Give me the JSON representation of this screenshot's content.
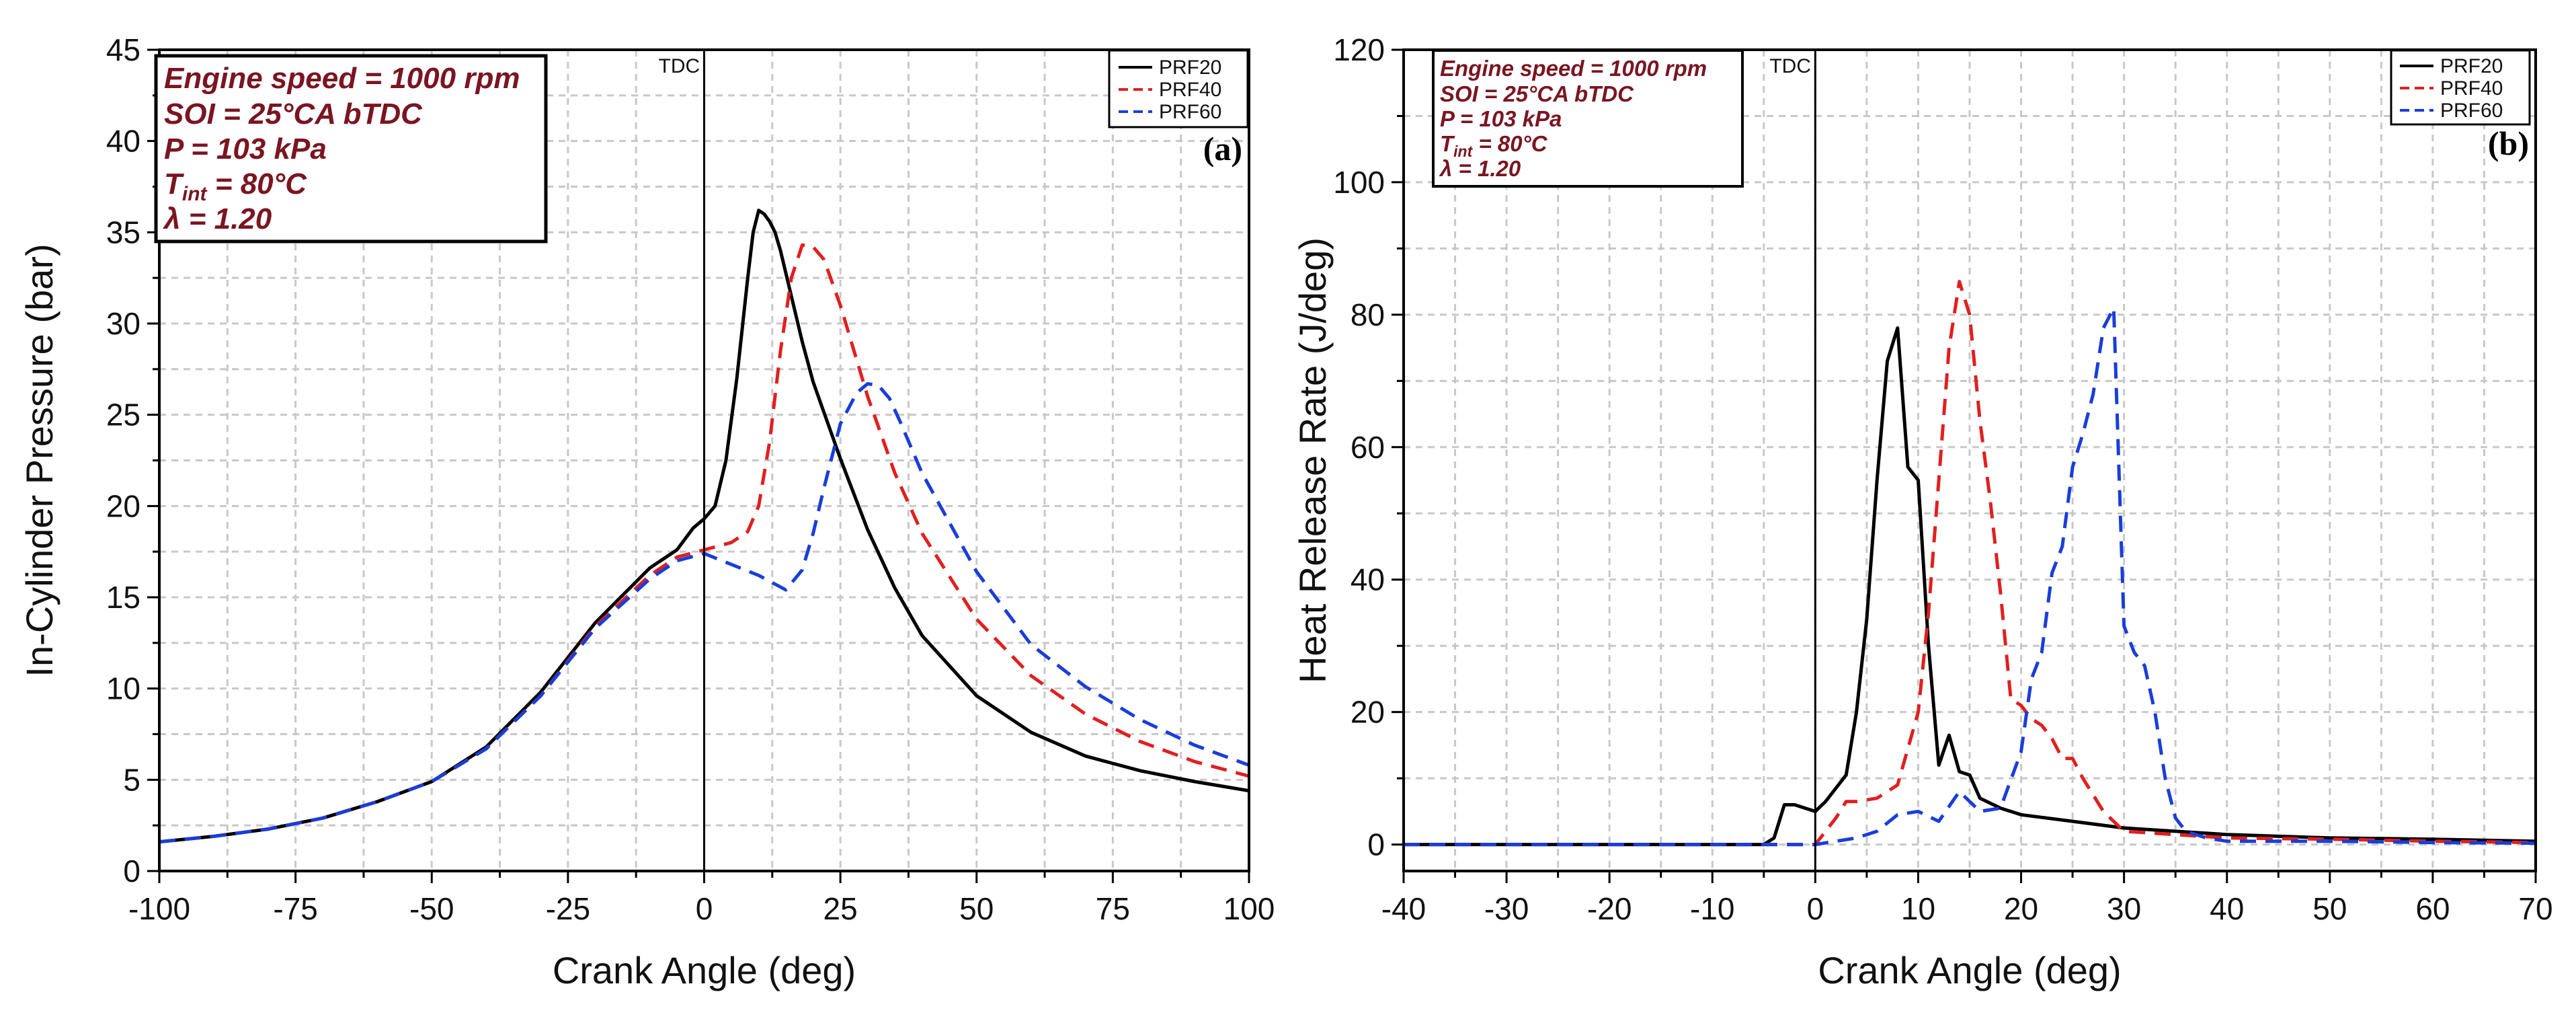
{
  "chart_data": [
    {
      "type": "line",
      "panel_label": "(a)",
      "xlabel": "Crank Angle (deg)",
      "ylabel": "In-Cylinder Pressure (bar)",
      "xlim": [
        -100,
        100
      ],
      "ylim": [
        0,
        45
      ],
      "xticks": [
        -100,
        -75,
        -50,
        -25,
        0,
        25,
        50,
        75,
        100
      ],
      "yticks": [
        0,
        5,
        10,
        15,
        20,
        25,
        30,
        35,
        40,
        45
      ],
      "grid": true,
      "legend_position": "top-right",
      "annotation": "TDC",
      "info_box": [
        "Engine speed = 1000 rpm",
        "SOI = 25°CA bTDC",
        "P = 103 kPa",
        "T_int = 80°C",
        "λ = 1.20"
      ],
      "series": [
        {
          "name": "PRF20",
          "color": "#000000",
          "dash": "solid",
          "x": [
            -100,
            -90,
            -80,
            -70,
            -60,
            -50,
            -40,
            -30,
            -20,
            -10,
            -5,
            -2,
            0,
            2,
            4,
            6,
            8,
            9,
            10,
            11,
            12,
            13,
            14,
            16,
            18,
            20,
            25,
            30,
            35,
            40,
            50,
            60,
            70,
            80,
            90,
            100
          ],
          "y": [
            1.6,
            1.9,
            2.3,
            2.9,
            3.8,
            4.9,
            6.8,
            9.8,
            13.6,
            16.6,
            17.6,
            18.8,
            19.3,
            20.0,
            22.5,
            27.0,
            32.5,
            35.0,
            36.2,
            36.0,
            35.6,
            35.0,
            34.0,
            31.5,
            29.0,
            26.8,
            22.6,
            18.7,
            15.5,
            12.9,
            9.6,
            7.6,
            6.3,
            5.5,
            4.9,
            4.4
          ]
        },
        {
          "name": "PRF40",
          "color": "#e02020",
          "dash": "dashed",
          "x": [
            -100,
            -90,
            -80,
            -70,
            -60,
            -50,
            -40,
            -30,
            -20,
            -10,
            -5,
            0,
            5,
            8,
            10,
            12,
            14,
            16,
            18,
            20,
            22,
            25,
            30,
            35,
            40,
            50,
            60,
            70,
            80,
            90,
            100
          ],
          "y": [
            1.6,
            1.9,
            2.3,
            2.9,
            3.8,
            4.9,
            6.7,
            9.6,
            13.4,
            16.2,
            17.2,
            17.6,
            18.0,
            18.6,
            20.0,
            23.5,
            28.5,
            32.5,
            34.3,
            34.2,
            33.5,
            31.0,
            26.0,
            21.8,
            18.5,
            13.8,
            10.7,
            8.6,
            7.1,
            6.0,
            5.2
          ]
        },
        {
          "name": "PRF60",
          "color": "#1a3ed8",
          "dash": "dashed",
          "x": [
            -100,
            -90,
            -80,
            -70,
            -60,
            -50,
            -40,
            -30,
            -20,
            -10,
            -5,
            0,
            5,
            10,
            15,
            18,
            20,
            22,
            25,
            28,
            30,
            32,
            34,
            36,
            40,
            50,
            60,
            70,
            80,
            90,
            100
          ],
          "y": [
            1.6,
            1.9,
            2.3,
            2.9,
            3.8,
            4.9,
            6.7,
            9.6,
            13.3,
            16.0,
            17.0,
            17.4,
            16.8,
            16.2,
            15.4,
            16.5,
            18.5,
            21.0,
            24.5,
            26.2,
            26.7,
            26.6,
            25.9,
            24.6,
            21.8,
            16.4,
            12.4,
            10.1,
            8.3,
            6.9,
            5.8
          ]
        }
      ]
    },
    {
      "type": "line",
      "panel_label": "(b)",
      "xlabel": "Crank Angle (deg)",
      "ylabel": "Heat Release Rate (J/deg)",
      "xlim": [
        -40,
        70
      ],
      "ylim": [
        -4,
        120
      ],
      "xticks": [
        -40,
        -30,
        -20,
        -10,
        0,
        10,
        20,
        30,
        40,
        50,
        60,
        70
      ],
      "yticks": [
        0,
        20,
        40,
        60,
        80,
        100,
        120
      ],
      "grid": true,
      "legend_position": "top-right",
      "annotation": "TDC",
      "info_box": [
        "Engine speed = 1000 rpm",
        "SOI = 25°CA bTDC",
        "P = 103 kPa",
        "T_int = 80°C",
        "λ = 1.20"
      ],
      "series": [
        {
          "name": "PRF20",
          "color": "#000000",
          "dash": "solid",
          "x": [
            -40,
            -10,
            -5,
            -4,
            -3,
            -2,
            -1,
            0,
            1,
            2,
            3,
            4,
            5,
            6,
            7,
            8,
            9,
            10,
            11,
            12,
            13,
            14,
            15,
            16,
            18,
            20,
            25,
            30,
            40,
            50,
            60,
            70
          ],
          "y": [
            0,
            0,
            0,
            1,
            6,
            6,
            5.5,
            5,
            6.5,
            8.5,
            10.5,
            20,
            34,
            55,
            73,
            78,
            57,
            55,
            30,
            12,
            16.5,
            11,
            10.5,
            7,
            5.5,
            4.5,
            3.5,
            2.5,
            1.5,
            1,
            0.8,
            0.5
          ]
        },
        {
          "name": "PRF40",
          "color": "#e02020",
          "dash": "dashed",
          "x": [
            -40,
            -5,
            0,
            2,
            3,
            4,
            6,
            8,
            10,
            11,
            12,
            13,
            14,
            15,
            16,
            17,
            18,
            19,
            20,
            21,
            22,
            23,
            24,
            25,
            26,
            28,
            30,
            40,
            50,
            60,
            70
          ],
          "y": [
            0,
            0,
            0,
            4,
            6.5,
            6.5,
            7,
            9,
            20,
            35,
            55,
            75,
            85,
            80,
            64,
            52,
            38,
            22,
            21,
            19,
            18,
            16,
            13,
            13,
            10,
            5,
            2,
            1,
            0.8,
            0.5,
            0.3
          ]
        },
        {
          "name": "PRF60",
          "color": "#1a3ed8",
          "dash": "dashed",
          "x": [
            -40,
            -5,
            0,
            2,
            4,
            6,
            8,
            10,
            12,
            14,
            16,
            18,
            20,
            21,
            22,
            23,
            24,
            25,
            26,
            27,
            28,
            29,
            30,
            31,
            32,
            33,
            34,
            35,
            36,
            38,
            40,
            50,
            60,
            70
          ],
          "y": [
            0,
            0,
            0,
            0.5,
            1,
            2,
            4.5,
            5,
            3.5,
            8,
            5,
            5.5,
            14,
            25,
            29,
            41,
            45,
            57,
            62,
            68,
            78,
            81,
            33,
            29,
            27,
            20,
            10,
            4,
            2,
            1,
            0.5,
            0.5,
            0.3,
            0.2
          ]
        }
      ]
    }
  ]
}
